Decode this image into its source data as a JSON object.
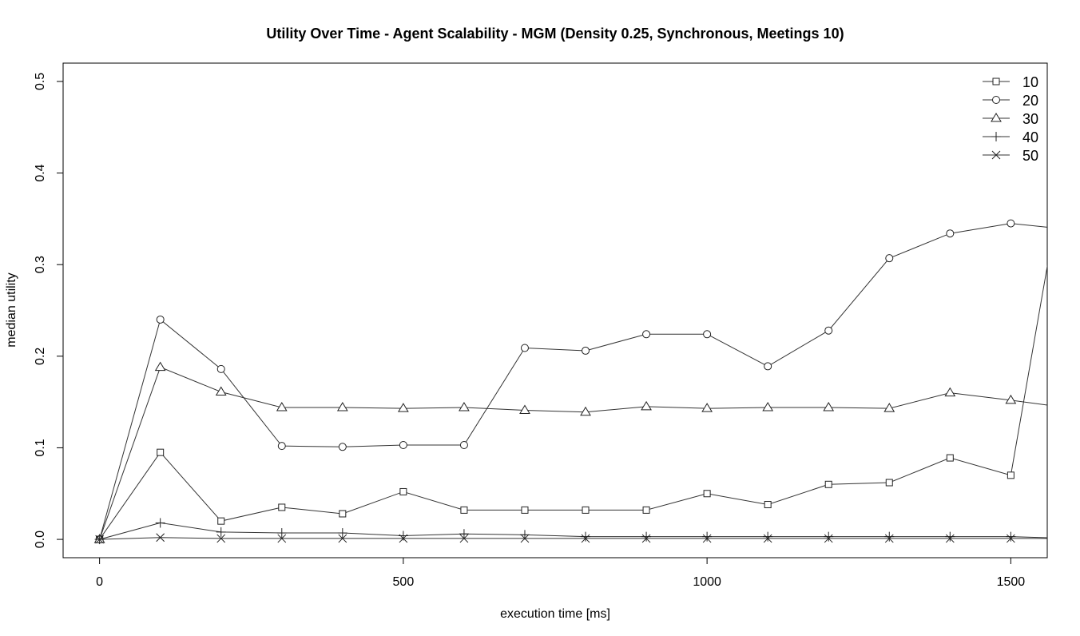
{
  "chart_data": {
    "type": "line",
    "title": "Utility Over Time - Agent Scalability - MGM (Density 0.25, Synchronous, Meetings 10)",
    "xlabel": "execution time [ms]",
    "ylabel": "median utility",
    "xlim": [
      -60,
      1560
    ],
    "ylim": [
      -0.02,
      0.52
    ],
    "xticks": [
      0,
      500,
      1000,
      1500
    ],
    "yticks": [
      0.0,
      0.1,
      0.2,
      0.3,
      0.4,
      0.5
    ],
    "xtick_labels": [
      "0",
      "500",
      "1000",
      "1500"
    ],
    "ytick_labels": [
      "0.0",
      "0.1",
      "0.2",
      "0.3",
      "0.4",
      "0.5"
    ],
    "grid": false,
    "legend_position": "top-right",
    "x": [
      0,
      100,
      200,
      300,
      400,
      500,
      600,
      700,
      800,
      900,
      1000,
      1100,
      1200,
      1300,
      1400,
      1500,
      1600
    ],
    "series": [
      {
        "name": "10",
        "marker": "square",
        "values": [
          0.0,
          0.095,
          0.02,
          0.035,
          0.028,
          0.052,
          0.032,
          0.032,
          0.032,
          0.032,
          0.05,
          0.038,
          0.06,
          0.062,
          0.089,
          0.07,
          0.45
        ]
      },
      {
        "name": "20",
        "marker": "circle",
        "values": [
          0.0,
          0.24,
          0.186,
          0.102,
          0.101,
          0.103,
          0.103,
          0.209,
          0.206,
          0.224,
          0.224,
          0.189,
          0.228,
          0.307,
          0.334,
          0.345,
          0.338
        ]
      },
      {
        "name": "30",
        "marker": "triangle",
        "values": [
          0.0,
          0.188,
          0.161,
          0.144,
          0.144,
          0.143,
          0.144,
          0.141,
          0.139,
          0.145,
          0.143,
          0.144,
          0.144,
          0.143,
          0.16,
          0.152,
          0.143
        ]
      },
      {
        "name": "40",
        "marker": "plus",
        "values": [
          0.0,
          0.018,
          0.008,
          0.007,
          0.007,
          0.004,
          0.006,
          0.005,
          0.003,
          0.003,
          0.003,
          0.003,
          0.003,
          0.003,
          0.003,
          0.003,
          0.001
        ]
      },
      {
        "name": "50",
        "marker": "x",
        "values": [
          0.0,
          0.002,
          0.001,
          0.001,
          0.001,
          0.001,
          0.001,
          0.001,
          0.001,
          0.001,
          0.001,
          0.001,
          0.001,
          0.001,
          0.001,
          0.001,
          0.001
        ]
      }
    ]
  }
}
